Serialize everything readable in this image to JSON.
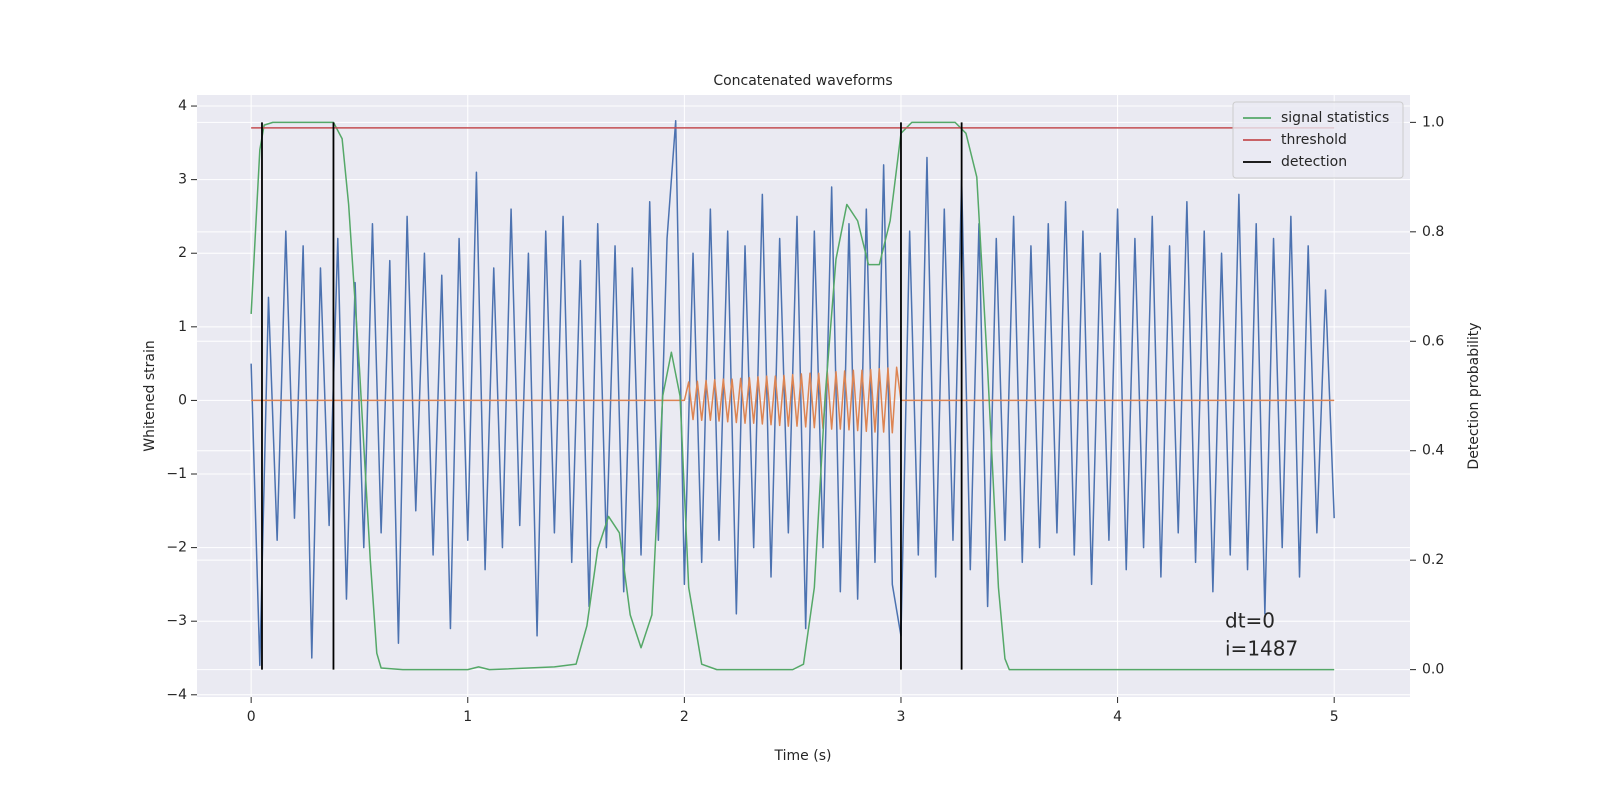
{
  "chart_data": {
    "type": "line",
    "title": "Concatenated waveforms",
    "x_label": "Time (s)",
    "y_label": "Whitened strain",
    "y2_label": "Detection probability",
    "xlim": [
      -0.25,
      5.35
    ],
    "ylim": [
      -4.03,
      4.15
    ],
    "y2lim": [
      -0.05,
      1.05
    ],
    "xticks": [
      0,
      1,
      2,
      3,
      4,
      5
    ],
    "yticks": [
      {
        "value": -4,
        "label": "−4"
      },
      {
        "value": -3,
        "label": "−3"
      },
      {
        "value": -2,
        "label": "−2"
      },
      {
        "value": -1,
        "label": "−1"
      },
      0,
      1,
      2,
      3,
      4
    ],
    "y2ticks": [
      {
        "value": 0,
        "label": "0.0"
      },
      0.2,
      0.4,
      0.6,
      0.8,
      {
        "value": 1,
        "label": "1.0"
      }
    ],
    "grid": true,
    "legend": "upper right",
    "series": [
      {
        "color": "#4c72b0",
        "x": [
          0,
          0.04,
          0.08,
          0.12,
          0.16,
          0.2,
          0.24,
          0.28,
          0.32,
          0.36,
          0.4,
          0.44,
          0.48,
          0.52,
          0.56,
          0.6,
          0.64,
          0.68,
          0.72,
          0.76,
          0.8,
          0.84,
          0.88,
          0.92,
          0.96,
          1,
          1.04,
          1.08,
          1.12,
          1.16,
          1.2,
          1.24,
          1.28,
          1.32,
          1.36,
          1.4,
          1.44,
          1.48,
          1.52,
          1.56,
          1.6,
          1.64,
          1.68,
          1.72,
          1.76,
          1.8,
          1.84,
          1.88,
          1.92,
          1.96,
          2,
          2.04,
          2.08,
          2.12,
          2.16,
          2.2,
          2.24,
          2.28,
          2.32,
          2.36,
          2.4,
          2.44,
          2.48,
          2.52,
          2.56,
          2.6,
          2.64,
          2.68,
          2.72,
          2.76,
          2.8,
          2.84,
          2.88,
          2.92,
          2.96,
          3,
          3.04,
          3.08,
          3.12,
          3.16,
          3.2,
          3.24,
          3.28,
          3.32,
          3.36,
          3.4,
          3.44,
          3.48,
          3.52,
          3.56,
          3.6,
          3.64,
          3.68,
          3.72,
          3.76,
          3.8,
          3.84,
          3.88,
          3.92,
          3.96,
          4,
          4.04,
          4.08,
          4.12,
          4.16,
          4.2,
          4.24,
          4.28,
          4.32,
          4.36,
          4.4,
          4.44,
          4.48,
          4.52,
          4.56,
          4.6,
          4.64,
          4.68,
          4.72,
          4.76,
          4.8,
          4.84,
          4.88,
          4.92,
          4.96,
          5
        ],
        "values": [
          0.5,
          -3.6,
          1.4,
          -1.9,
          2.3,
          -1.6,
          2.1,
          -3.5,
          1.8,
          -1.7,
          2.2,
          -2.7,
          1.6,
          -2.0,
          2.4,
          -1.8,
          1.9,
          -3.3,
          2.5,
          -1.5,
          2.0,
          -2.1,
          1.7,
          -3.1,
          2.2,
          -1.9,
          3.1,
          -2.3,
          1.8,
          -2.0,
          2.6,
          -1.7,
          2.0,
          -3.2,
          2.3,
          -1.8,
          2.5,
          -2.2,
          1.9,
          -2.8,
          2.4,
          -2.0,
          2.1,
          -2.6,
          1.8,
          -2.1,
          2.7,
          -1.9,
          2.2,
          3.8,
          -2.5,
          2.0,
          -2.2,
          2.6,
          -1.9,
          2.3,
          -2.9,
          2.1,
          -2.0,
          2.8,
          -2.4,
          2.2,
          -1.8,
          2.5,
          -3.1,
          2.3,
          -2.0,
          2.9,
          -2.6,
          2.4,
          -2.7,
          2.6,
          -2.2,
          3.2,
          -2.5,
          -3.2,
          2.3,
          -2.1,
          3.3,
          -2.4,
          2.6,
          -1.9,
          3.0,
          -2.3,
          2.4,
          -2.8,
          2.2,
          -1.9,
          2.5,
          -2.2,
          2.1,
          -2.0,
          2.4,
          -1.8,
          2.7,
          -2.1,
          2.3,
          -2.5,
          2.0,
          -1.9,
          2.6,
          -2.3,
          2.2,
          -2.0,
          2.5,
          -2.4,
          2.1,
          -1.8,
          2.7,
          -2.2,
          2.3,
          -2.6,
          2.0,
          -2.1,
          2.8,
          -2.3,
          2.4,
          -2.9,
          2.2,
          -2.0,
          2.5,
          -2.4,
          2.1,
          -1.8,
          1.5,
          -1.6
        ]
      },
      {
        "color": "#dd8452",
        "x": [
          0,
          2,
          2.02,
          2.04,
          2.06,
          2.08,
          2.1,
          2.12,
          2.14,
          2.16,
          2.18,
          2.2,
          2.22,
          2.24,
          2.26,
          2.28,
          2.3,
          2.32,
          2.34,
          2.36,
          2.38,
          2.4,
          2.42,
          2.44,
          2.46,
          2.48,
          2.5,
          2.52,
          2.54,
          2.56,
          2.58,
          2.6,
          2.62,
          2.64,
          2.66,
          2.68,
          2.7,
          2.72,
          2.74,
          2.76,
          2.78,
          2.8,
          2.82,
          2.84,
          2.86,
          2.88,
          2.9,
          2.92,
          2.94,
          2.96,
          2.98,
          3,
          5
        ],
        "values": [
          0,
          0,
          0.25,
          -0.26,
          0.26,
          -0.27,
          0.27,
          -0.27,
          0.28,
          -0.28,
          0.29,
          -0.29,
          0.29,
          -0.3,
          0.3,
          -0.31,
          0.31,
          -0.31,
          0.32,
          -0.32,
          0.33,
          -0.33,
          0.33,
          -0.34,
          0.34,
          -0.35,
          0.35,
          -0.35,
          0.36,
          -0.36,
          0.37,
          -0.37,
          0.37,
          -0.38,
          0.38,
          -0.39,
          0.39,
          -0.39,
          0.4,
          -0.4,
          0.41,
          -0.41,
          0.41,
          -0.42,
          0.42,
          -0.43,
          0.43,
          -0.43,
          0.44,
          -0.44,
          0.45,
          0,
          0
        ]
      },
      {
        "name": "signal statistics",
        "color": "#55a868",
        "axis": "y2",
        "x": [
          0,
          0.02,
          0.04,
          0.06,
          0.1,
          0.38,
          0.42,
          0.45,
          0.5,
          0.55,
          0.58,
          0.6,
          0.7,
          1,
          1.05,
          1.1,
          1.4,
          1.5,
          1.55,
          1.6,
          1.65,
          1.7,
          1.75,
          1.8,
          1.85,
          1.9,
          1.94,
          1.98,
          2.02,
          2.08,
          2.15,
          2.5,
          2.55,
          2.6,
          2.65,
          2.7,
          2.75,
          2.8,
          2.85,
          2.9,
          2.95,
          3,
          3.05,
          3.25,
          3.3,
          3.35,
          3.4,
          3.45,
          3.48,
          3.5,
          5
        ],
        "values": [
          0.65,
          0.8,
          0.95,
          0.995,
          1,
          1,
          0.97,
          0.85,
          0.55,
          0.2,
          0.03,
          0.003,
          0,
          0,
          0.005,
          0,
          0.005,
          0.01,
          0.08,
          0.22,
          0.28,
          0.25,
          0.1,
          0.04,
          0.1,
          0.5,
          0.58,
          0.5,
          0.15,
          0.01,
          0,
          0,
          0.01,
          0.15,
          0.5,
          0.75,
          0.85,
          0.82,
          0.74,
          0.74,
          0.82,
          0.98,
          1,
          1,
          0.98,
          0.9,
          0.55,
          0.15,
          0.02,
          0,
          0
        ]
      },
      {
        "name": "threshold",
        "color": "#c44e52",
        "axis": "y2",
        "x": [
          0,
          5
        ],
        "values": [
          0.99,
          0.99
        ]
      }
    ],
    "detection": {
      "name": "detection",
      "color": "#000000",
      "x": [
        0.05,
        0.38,
        3.0,
        3.28
      ],
      "y2_from": 0,
      "y2_to": 1
    },
    "annotations": [
      "dt=0",
      "i=1487"
    ]
  }
}
